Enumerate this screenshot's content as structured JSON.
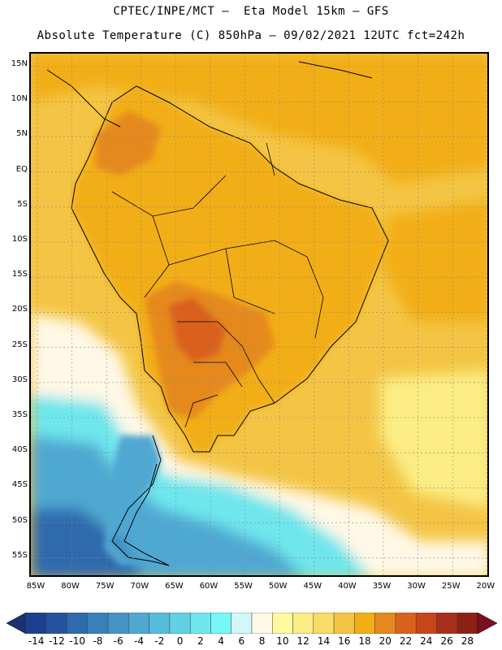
{
  "header": {
    "line1": "CPTEC/INPE/MCT –  Eta Model 15km – GFS",
    "line2": "Absolute Temperature (C) 850hPa – 09/02/2021 12UTC fct=242h"
  },
  "map": {
    "lat_labels": [
      "15N",
      "10N",
      "5N",
      "EQ",
      "5S",
      "10S",
      "15S",
      "20S",
      "25S",
      "30S",
      "35S",
      "40S",
      "45S",
      "50S",
      "55S"
    ],
    "lon_labels": [
      "85W",
      "80W",
      "75W",
      "70W",
      "65W",
      "60W",
      "55W",
      "50W",
      "45W",
      "40W",
      "35W",
      "30W",
      "25W",
      "20W"
    ],
    "lat_values": [
      15,
      10,
      5,
      0,
      -5,
      -10,
      -15,
      -20,
      -25,
      -30,
      -35,
      -40,
      -45,
      -50,
      -55
    ],
    "lon_values": [
      -85,
      -80,
      -75,
      -70,
      -65,
      -60,
      -55,
      -50,
      -45,
      -40,
      -35,
      -30,
      -25,
      -20
    ]
  },
  "colorbar": {
    "labels": [
      "-14",
      "-12",
      "-10",
      "-8",
      "-6",
      "-4",
      "-2",
      "0",
      "2",
      "4",
      "6",
      "8",
      "10",
      "12",
      "14",
      "16",
      "18",
      "20",
      "22",
      "24",
      "26",
      "28"
    ],
    "colors": [
      "#1c3f8f",
      "#25539d",
      "#2e6aad",
      "#3a80bb",
      "#4494c6",
      "#4fa8d2",
      "#56bcdb",
      "#5fd1e3",
      "#6ee6ec",
      "#76f7f6",
      "#d2f7fb",
      "#fff8e6",
      "#fffaa0",
      "#fbed84",
      "#f7dc65",
      "#f4c545",
      "#f2ae16",
      "#e5891e",
      "#da611c",
      "#c8451a",
      "#a8301a",
      "#8b2013"
    ],
    "left_arrow": "#1a3070",
    "right_arrow": "#7a0f20"
  },
  "colors": {
    "ocean_warm": "#f4c545",
    "ocean_very_warm": "#f2ae16",
    "land_hot": "#e5891e",
    "land_hotter": "#da611c",
    "cold_south": "#4fa8d2",
    "coldest": "#2e6aad",
    "cyan": "#6ee6ec",
    "pale": "#fff8e6",
    "yellow": "#fbed84"
  }
}
